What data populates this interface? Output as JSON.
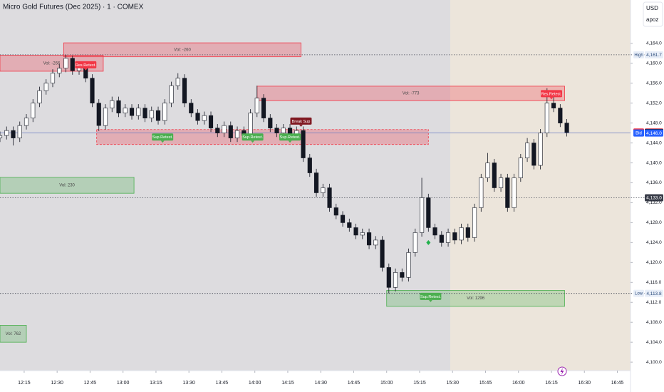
{
  "chart_data": {
    "type": "candlestick",
    "title": "Micro Gold Futures (Dec 2025) · 1 · COMEX",
    "currency": "USD",
    "account": "apoz",
    "x": [
      "12:04",
      "12:07",
      "12:10",
      "12:13",
      "12:16",
      "12:19",
      "12:22",
      "12:25",
      "12:28",
      "12:31",
      "12:34",
      "12:37",
      "12:40",
      "12:43",
      "12:46",
      "12:49",
      "12:52",
      "12:55",
      "12:58",
      "13:01",
      "13:04",
      "13:07",
      "13:10",
      "13:13",
      "13:16",
      "13:19",
      "13:22",
      "13:25",
      "13:28",
      "13:31",
      "13:34",
      "13:37",
      "13:40",
      "13:43",
      "13:46",
      "13:49",
      "13:52",
      "13:55",
      "13:58",
      "14:01",
      "14:04",
      "14:07",
      "14:10",
      "14:13",
      "14:16",
      "14:19",
      "14:22",
      "14:25",
      "14:28",
      "14:31",
      "14:34",
      "14:37",
      "14:40",
      "14:43",
      "14:46",
      "14:49",
      "14:52",
      "14:55",
      "14:58",
      "15:01",
      "15:04",
      "15:07",
      "15:10",
      "15:13",
      "15:16",
      "15:19",
      "15:22",
      "15:25",
      "15:28",
      "15:31",
      "15:34",
      "15:37",
      "15:40",
      "15:43",
      "15:46",
      "15:49",
      "15:52",
      "15:55",
      "15:58",
      "16:01",
      "16:04",
      "16:07",
      "16:10",
      "16:13",
      "16:16",
      "16:19",
      "16:22"
    ],
    "open": [
      4145,
      4145.5,
      4146.5,
      4145,
      4147.5,
      4149,
      4152,
      4154.5,
      4156,
      4158,
      4159,
      4161,
      4158.5,
      4159.5,
      4157,
      4152,
      4147.5,
      4151,
      4152.5,
      4150,
      4151,
      4149.5,
      4151,
      4149,
      4150.5,
      4148.5,
      4152,
      4155.5,
      4157,
      4152,
      4150,
      4148.5,
      4149.5,
      4147,
      4146,
      4147.5,
      4145,
      4146.5,
      4145.5,
      4150,
      4153,
      4149,
      4147,
      4146,
      4147,
      4145.5,
      4146.5,
      4141,
      4138,
      4134,
      4135,
      4131,
      4129.5,
      4128,
      4127,
      4125.5,
      4126,
      4123.5,
      4124.5,
      4119,
      4115,
      4118,
      4117,
      4122,
      4126,
      4133,
      4127,
      4125.5,
      4124,
      4126,
      4124.5,
      4127,
      4125,
      4131,
      4137,
      4140,
      4135,
      4137,
      4131,
      4137,
      4141,
      4144,
      4139.5,
      4146,
      4152,
      4151,
      4148
    ],
    "high": [
      4146.3,
      4147.3,
      4147.3,
      4148.3,
      4149.8,
      4152.8,
      4155.3,
      4156.8,
      4158.8,
      4159.8,
      4161.7,
      4161.5,
      4160.3,
      4160.3,
      4157.8,
      4152.8,
      4151.8,
      4153.3,
      4153.3,
      4151.8,
      4151.8,
      4151.8,
      4151.8,
      4151.3,
      4151.3,
      4152.8,
      4156.3,
      4158,
      4157.8,
      4152.8,
      4150.8,
      4150.3,
      4150.3,
      4147.8,
      4148.3,
      4148.3,
      4147.3,
      4147.3,
      4150.8,
      4155.5,
      4153.8,
      4149.8,
      4147.8,
      4147.8,
      4147.8,
      4147.3,
      4147.3,
      4141.8,
      4138.8,
      4135.8,
      4135.8,
      4131.8,
      4130.3,
      4128.8,
      4127.8,
      4126.8,
      4126.8,
      4125.3,
      4125.3,
      4119.8,
      4118.8,
      4118.8,
      4122.8,
      4126.8,
      4137,
      4133.8,
      4127.8,
      4126.3,
      4126.8,
      4126.8,
      4127.8,
      4127.8,
      4131.8,
      4137.8,
      4142,
      4140.8,
      4137.8,
      4137.8,
      4137.8,
      4141.8,
      4145,
      4144.8,
      4146.8,
      4155,
      4153.8,
      4151.8,
      4148.8
    ],
    "low": [
      4144.2,
      4144.7,
      4143.5,
      4144.2,
      4146.7,
      4148.2,
      4151.2,
      4153.7,
      4155.2,
      4157.2,
      4158.2,
      4157.7,
      4157.7,
      4156.2,
      4151.2,
      4146.4,
      4146.7,
      4150.2,
      4149.2,
      4149.2,
      4148.7,
      4148.7,
      4148.2,
      4148.2,
      4147.7,
      4147.7,
      4151.2,
      4154.7,
      4151.2,
      4149.2,
      4147.7,
      4147.7,
      4146.2,
      4145.2,
      4145.2,
      4144.2,
      4144.2,
      4144.7,
      4144.7,
      4149.2,
      4148.2,
      4146.2,
      4145.2,
      4145.2,
      4144.7,
      4144.7,
      4140.2,
      4137.2,
      4133.2,
      4133.2,
      4130.2,
      4128.7,
      4127.2,
      4126.2,
      4124.7,
      4124.7,
      4122.7,
      4122.7,
      4118.2,
      4113.8,
      4114.2,
      4116.2,
      4116.2,
      4121.2,
      4125.2,
      4126.2,
      4124.7,
      4123.2,
      4123.2,
      4123.7,
      4123.7,
      4124.2,
      4124.2,
      4130.2,
      4136.2,
      4134.2,
      4134.2,
      4130.2,
      4130.2,
      4136.2,
      4140.2,
      4138.7,
      4138.7,
      4145.2,
      4150.2,
      4147.2,
      4145.3
    ],
    "close": [
      4145.5,
      4146.5,
      4145,
      4147.5,
      4149,
      4152,
      4154.5,
      4156,
      4158,
      4159,
      4161,
      4158.5,
      4159.5,
      4157,
      4152,
      4147.5,
      4151,
      4152.5,
      4150,
      4151,
      4149.5,
      4151,
      4149,
      4150.5,
      4148.5,
      4152,
      4155.5,
      4157,
      4152,
      4150,
      4148.5,
      4149.5,
      4147,
      4146,
      4147.5,
      4145,
      4146.5,
      4145.5,
      4150,
      4153,
      4149,
      4147,
      4146,
      4147,
      4145.5,
      4146.5,
      4141,
      4138,
      4134,
      4135,
      4131,
      4129.5,
      4128,
      4127,
      4125.5,
      4126,
      4123.5,
      4124.5,
      4119,
      4115,
      4118,
      4117,
      4122,
      4126,
      4133,
      4127,
      4125.5,
      4124,
      4126,
      4124.5,
      4127,
      4125,
      4131,
      4137,
      4140,
      4135,
      4137,
      4131,
      4137,
      4141,
      4144,
      4139.5,
      4146,
      4152,
      4151,
      4148,
      4146.1
    ],
    "up_color": "#ffffff",
    "down_color": "#131722",
    "xlim": [
      "12:04",
      "16:51"
    ],
    "xticks": [
      "12:15",
      "12:30",
      "12:45",
      "13:00",
      "13:15",
      "13:30",
      "13:45",
      "14:00",
      "14:15",
      "14:30",
      "14:45",
      "15:00",
      "15:15",
      "15:30",
      "15:45",
      "16:00",
      "16:15",
      "16:30",
      "16:45"
    ],
    "ylim": [
      4098.3,
      4172.7
    ],
    "yticks": [
      {
        "value": 4100,
        "label": "4,100.0"
      },
      {
        "value": 4104,
        "label": "4,104.0"
      },
      {
        "value": 4108,
        "label": "4,108.0"
      },
      {
        "value": 4112,
        "label": "4,112.0"
      },
      {
        "value": 4116,
        "label": "4,116.0"
      },
      {
        "value": 4120,
        "label": "4,120.0"
      },
      {
        "value": 4124,
        "label": "4,124.0"
      },
      {
        "value": 4128,
        "label": "4,128.0"
      },
      {
        "value": 4132,
        "label": "4,132.0"
      },
      {
        "value": 4136,
        "label": "4,136.0"
      },
      {
        "value": 4140,
        "label": "4,140.0"
      },
      {
        "value": 4144,
        "label": "4,144.0"
      },
      {
        "value": 4148,
        "label": "4,148.0"
      },
      {
        "value": 4152,
        "label": "4,152.0"
      },
      {
        "value": 4156,
        "label": "4,156.0"
      },
      {
        "value": 4160,
        "label": "4,160.0"
      },
      {
        "value": 4164,
        "label": "4,164.0"
      }
    ],
    "grid": false,
    "zones": [
      {
        "label": "Vol: -266",
        "top": 4161.6,
        "bottom": 4158.4,
        "start": "12:04",
        "end": "12:51",
        "color": "#f23645",
        "dashed": false
      },
      {
        "label": "Vol: -260",
        "top": 4164.1,
        "bottom": 4161.3,
        "start": "12:33",
        "end": "14:21",
        "color": "#f23645",
        "dashed": false
      },
      {
        "label": "Vol: -773",
        "top": 4155.4,
        "bottom": 4152.5,
        "start": "14:01",
        "end": "16:21",
        "color": "#f23645",
        "dashed": false
      },
      {
        "top": 4146.7,
        "bottom": 4143.7,
        "start": "12:48",
        "end": "15:19",
        "color": "#f23645",
        "dashed": true
      },
      {
        "label": "Vol: 230",
        "top": 4137.1,
        "bottom": 4133.9,
        "start": "12:04",
        "end": "13:05",
        "color": "#4caf50",
        "dashed": false
      },
      {
        "label": "Vol: 1296",
        "top": 4114.4,
        "bottom": 4111.2,
        "start": "15:00",
        "end": "16:21",
        "color": "#4caf50",
        "dashed": false
      },
      {
        "label": "Vol: 762",
        "top": 4107.4,
        "bottom": 4104.0,
        "start": "12:04",
        "end": "12:16",
        "color": "#4caf50",
        "dashed": false
      }
    ],
    "signals": [
      {
        "label": "Res.Retest.",
        "time": "12:43",
        "price": 4159.7,
        "color": "#f23645"
      },
      {
        "label": "Sup.Retest.",
        "time": "13:18",
        "price": 4145.2,
        "color": "#4caf50"
      },
      {
        "label": "Sup.Retest.",
        "time": "13:59",
        "price": 4145.2,
        "color": "#4caf50"
      },
      {
        "label": "Sup.Retest.",
        "time": "14:16",
        "price": 4145.2,
        "color": "#4caf50"
      },
      {
        "label": "Break Sup",
        "time": "14:21",
        "price": 4148.4,
        "color": "#801922"
      },
      {
        "label": "Sup.Retest.",
        "time": "15:20",
        "price": 4113.2,
        "color": "#4caf50"
      },
      {
        "label": "Res.Retest.",
        "time": "16:15",
        "price": 4153.9,
        "color": "#f23645"
      }
    ],
    "markers": [
      {
        "time": "15:19",
        "price": 4124,
        "color": "#22b14c"
      }
    ],
    "price_tags": [
      {
        "label": "High",
        "price": {
          "value": 4161.7,
          "label": "4,161.7"
        },
        "color": "#e8eef8",
        "text_color": "#2a4a7a",
        "line": "dotted"
      },
      {
        "label": "Ask",
        "price": {
          "value": 4146.2,
          "label": "4,146.2"
        },
        "color": "#f23645",
        "text_color": "#ffffff",
        "line": "none"
      },
      {
        "price": {
          "value": 4146.1,
          "label": "4,146.1"
        },
        "color": "#131722",
        "text_color": "#ffffff",
        "line": "none"
      },
      {
        "label": "Bid",
        "price": {
          "value": 4146.0,
          "label": "4,146.0"
        },
        "color": "#2962ff",
        "text_color": "#ffffff",
        "line": "solid"
      },
      {
        "price": {
          "value": 4133.0,
          "label": "4,133.0"
        },
        "color": "#3a3e4a",
        "text_color": "#ffffff",
        "line": "dotted"
      },
      {
        "label": "Low",
        "price": {
          "value": 4113.8,
          "label": "4,113.8"
        },
        "color": "#e8eef8",
        "text_color": "#2a4a7a",
        "line": "dotted"
      }
    ]
  }
}
